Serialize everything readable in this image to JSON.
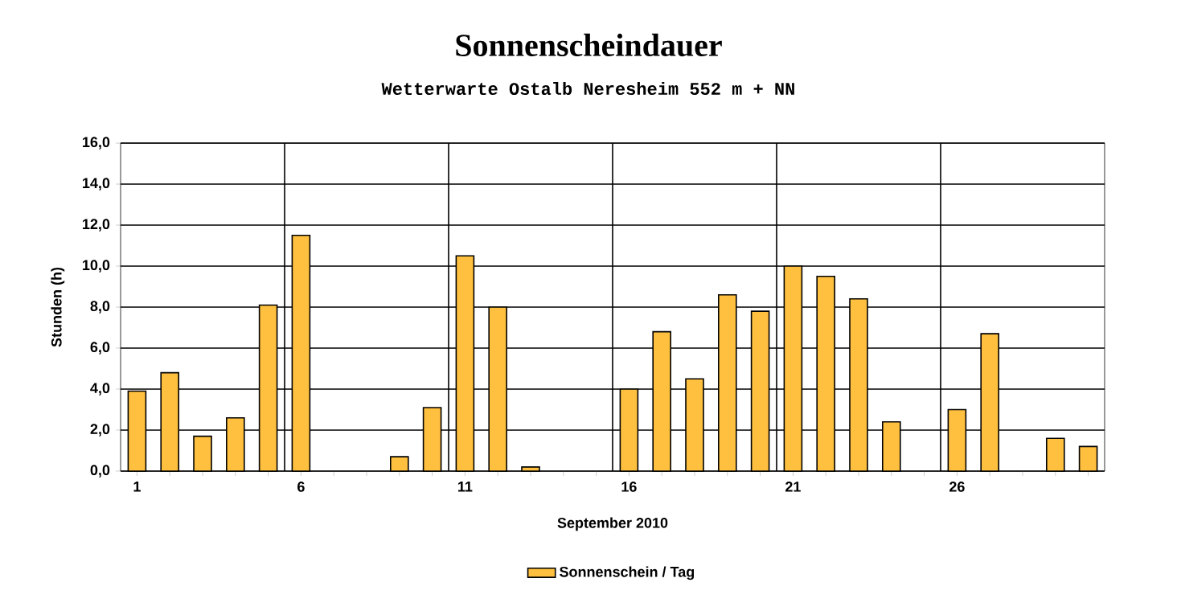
{
  "chart_data": {
    "type": "bar",
    "title": "Sonnenscheindauer",
    "subtitle": "Wetterwarte Ostalb Neresheim 552 m + NN",
    "xlabel": "September 2010",
    "ylabel": "Stunden  (h)",
    "categories": [
      "1",
      null,
      null,
      null,
      null,
      "6",
      null,
      null,
      null,
      null,
      "11",
      null,
      null,
      null,
      null,
      "16",
      null,
      null,
      null,
      null,
      "21",
      null,
      null,
      null,
      null,
      "26",
      null,
      null,
      null,
      null
    ],
    "series": [
      {
        "name": "Sonnenschein / Tag",
        "color": "#ffc040",
        "values": [
          3.9,
          4.8,
          1.7,
          2.6,
          8.1,
          11.5,
          0,
          0,
          0.7,
          3.1,
          10.5,
          8.0,
          0.2,
          0,
          0,
          4.0,
          6.8,
          4.5,
          8.6,
          7.8,
          10.0,
          9.5,
          8.4,
          2.4,
          0,
          3.0,
          6.7,
          0,
          1.6,
          1.2
        ]
      }
    ],
    "ylim": [
      0,
      16
    ],
    "yticks": [
      {
        "value": 0,
        "label": "0,0"
      },
      {
        "value": 2,
        "label": "2,0"
      },
      {
        "value": 4,
        "label": "4,0"
      },
      {
        "value": 6,
        "label": "6,0"
      },
      {
        "value": 8,
        "label": "8,0"
      },
      {
        "value": 10,
        "label": "10,0"
      },
      {
        "value": 12,
        "label": "12,0"
      },
      {
        "value": 14,
        "label": "14,0"
      },
      {
        "value": 16,
        "label": "16,0"
      }
    ],
    "grid": true,
    "legend": "bottom"
  }
}
